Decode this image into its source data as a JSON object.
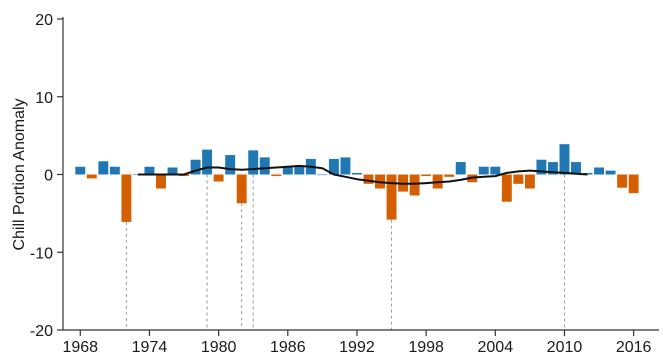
{
  "chart_data": {
    "type": "bar",
    "title": "",
    "xlabel": "",
    "ylabel": "Chill Portion Anomaly",
    "ylim": [
      -20,
      20
    ],
    "yticks": [
      20,
      10,
      0,
      -10,
      -20
    ],
    "xlim": [
      1966.5,
      2018.2
    ],
    "xticks": [
      1968,
      1974,
      1980,
      1986,
      1992,
      1998,
      2004,
      2010,
      2016
    ],
    "colors": {
      "positive": "#1f77b4",
      "negative": "#d55e00",
      "trend": "#111111",
      "guide": "#9a9a9a",
      "axis": "#333333"
    },
    "bars": {
      "years": [
        1968,
        1969,
        1970,
        1971,
        1972,
        1973,
        1974,
        1975,
        1976,
        1977,
        1978,
        1979,
        1980,
        1981,
        1982,
        1983,
        1984,
        1985,
        1986,
        1987,
        1988,
        1989,
        1990,
        1991,
        1992,
        1993,
        1994,
        1995,
        1996,
        1997,
        1998,
        1999,
        2000,
        2001,
        2002,
        2003,
        2004,
        2005,
        2006,
        2007,
        2008,
        2009,
        2010,
        2011,
        2012,
        2013,
        2014,
        2015,
        2016
      ],
      "values": [
        1.0,
        -0.5,
        1.7,
        1.0,
        -6.1,
        0.0,
        1.0,
        -1.8,
        0.9,
        -0.2,
        1.9,
        3.2,
        -0.9,
        2.5,
        -3.7,
        3.1,
        2.2,
        -0.2,
        1.1,
        1.1,
        2.0,
        0.0,
        2.0,
        2.2,
        0.2,
        -1.2,
        -1.8,
        -5.8,
        -2.2,
        -2.7,
        -0.2,
        -1.8,
        -0.3,
        1.6,
        -1.0,
        1.0,
        1.0,
        -3.5,
        -1.2,
        -1.8,
        1.9,
        1.6,
        3.9,
        1.6,
        0.2,
        0.9,
        0.5,
        -1.7,
        -2.4
      ]
    },
    "trend": {
      "years": [
        1973,
        1974,
        1975,
        1976,
        1977,
        1978,
        1979,
        1980,
        1981,
        1982,
        1983,
        1984,
        1985,
        1986,
        1987,
        1988,
        1989,
        1990,
        1991,
        1992,
        1993,
        1994,
        1995,
        1996,
        1997,
        1998,
        1999,
        2000,
        2001,
        2002,
        2003,
        2004,
        2005,
        2006,
        2007,
        2008,
        2009,
        2010,
        2011,
        2012
      ],
      "values": [
        0.0,
        0.0,
        0.0,
        0.0,
        0.0,
        0.5,
        0.9,
        0.9,
        0.7,
        0.6,
        0.7,
        0.8,
        0.9,
        1.0,
        1.1,
        1.0,
        0.8,
        0.0,
        -0.3,
        -0.6,
        -0.8,
        -1.0,
        -1.1,
        -1.2,
        -1.2,
        -1.1,
        -1.0,
        -0.9,
        -0.7,
        -0.4,
        -0.3,
        -0.2,
        0.2,
        0.4,
        0.5,
        0.4,
        0.3,
        0.2,
        0.1,
        0.0
      ]
    },
    "guide_years": [
      1972,
      1979,
      1982,
      1983,
      1995,
      2010
    ]
  }
}
